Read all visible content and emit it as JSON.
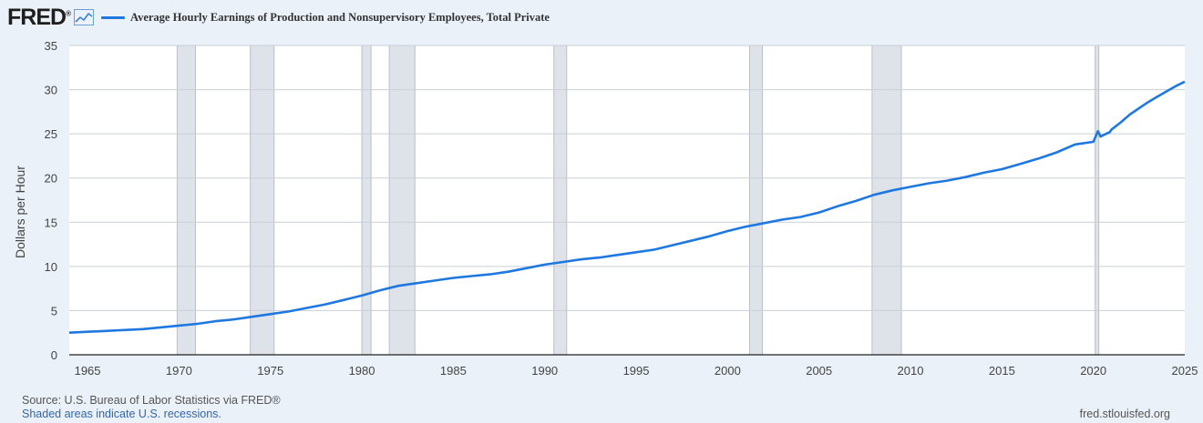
{
  "header": {
    "logo_text": "FRED",
    "logo_mark": "®",
    "legend_label": "Average Hourly Earnings of Production and Nonsupervisory Employees, Total Private"
  },
  "footer": {
    "source": "Source: U.S. Bureau of Labor Statistics via FRED®",
    "recession_note": "Shaded areas indicate U.S. recessions.",
    "site": "fred.stlouisfed.org"
  },
  "colors": {
    "series": "#1f77e0",
    "recession": "#dde3e9",
    "background": "#eaf1f8"
  },
  "chart_data": {
    "type": "line",
    "title": "",
    "xlabel": "",
    "ylabel": "Dollars per Hour",
    "xlim": [
      1964.0,
      2025.0
    ],
    "ylim": [
      0,
      35
    ],
    "y_ticks": [
      0,
      5,
      10,
      15,
      20,
      25,
      30,
      35
    ],
    "x_ticks": [
      1965,
      1970,
      1975,
      1980,
      1985,
      1990,
      1995,
      2000,
      2005,
      2010,
      2015,
      2020,
      2025
    ],
    "grid": true,
    "legend": "top-left",
    "recessions": [
      [
        1969.9,
        1970.9
      ],
      [
        1973.9,
        1975.2
      ],
      [
        1980.0,
        1980.5
      ],
      [
        1981.5,
        1982.9
      ],
      [
        1990.5,
        1991.2
      ],
      [
        2001.2,
        2001.9
      ],
      [
        2007.9,
        2009.5
      ],
      [
        2020.1,
        2020.3
      ]
    ],
    "series": [
      {
        "x": [
          1964.0,
          1965,
          1966,
          1967,
          1968,
          1969,
          1970,
          1971,
          1972,
          1973,
          1974,
          1975,
          1976,
          1977,
          1978,
          1979,
          1980,
          1981,
          1982,
          1983,
          1984,
          1985,
          1986,
          1987,
          1988,
          1989,
          1990,
          1991,
          1992,
          1993,
          1994,
          1995,
          1996,
          1997,
          1998,
          1999,
          2000,
          2001,
          2002,
          2003,
          2004,
          2005,
          2006,
          2007,
          2008,
          2009,
          2010,
          2011,
          2012,
          2013,
          2014,
          2015,
          2016,
          2017,
          2018,
          2019,
          2020.0,
          2020.25,
          2020.4,
          2020.6,
          2020.9,
          2021,
          2021.5,
          2022,
          2022.5,
          2023,
          2023.5,
          2024,
          2024.5,
          2025.0
        ],
        "values": [
          2.5,
          2.6,
          2.7,
          2.8,
          2.9,
          3.1,
          3.3,
          3.5,
          3.8,
          4.0,
          4.3,
          4.6,
          4.9,
          5.3,
          5.7,
          6.2,
          6.7,
          7.3,
          7.8,
          8.1,
          8.4,
          8.7,
          8.9,
          9.1,
          9.4,
          9.8,
          10.2,
          10.5,
          10.8,
          11.0,
          11.3,
          11.6,
          11.9,
          12.4,
          12.9,
          13.4,
          14.0,
          14.5,
          14.9,
          15.3,
          15.6,
          16.1,
          16.8,
          17.4,
          18.1,
          18.6,
          19.0,
          19.4,
          19.7,
          20.1,
          20.6,
          21.0,
          21.6,
          22.2,
          22.9,
          23.8,
          24.1,
          25.3,
          24.7,
          24.9,
          25.2,
          25.5,
          26.3,
          27.2,
          27.9,
          28.6,
          29.2,
          29.8,
          30.4,
          30.9
        ]
      }
    ]
  }
}
